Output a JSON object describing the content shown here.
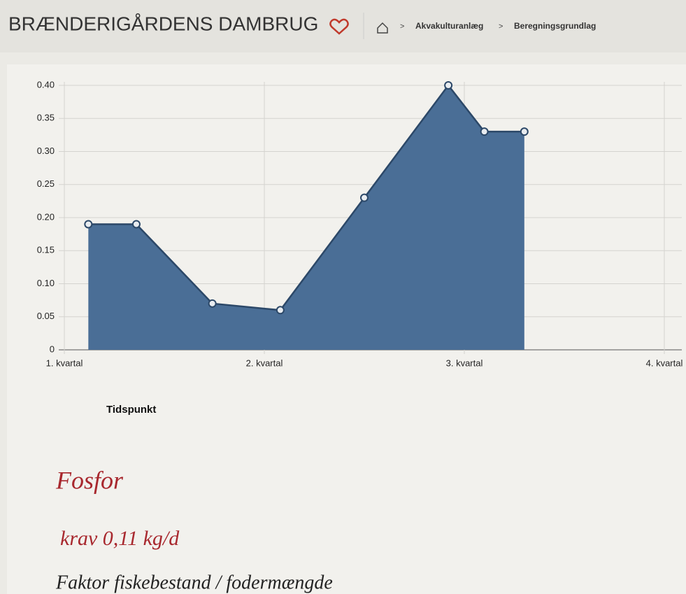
{
  "header": {
    "title": "BRÆNDERIGÅRDENS DAMBRUG",
    "breadcrumb": [
      "Akvakulturanlæg",
      "Beregningsgrundlag"
    ]
  },
  "chart_data": {
    "type": "area",
    "x_label": "Tidspunkt",
    "x": [
      0.12,
      0.36,
      0.74,
      1.08,
      1.5,
      1.92,
      2.1,
      2.3
    ],
    "values": [
      0.19,
      0.19,
      0.07,
      0.06,
      0.23,
      0.4,
      0.33,
      0.33
    ],
    "color": "#4a6e96",
    "xlim": [
      0,
      3
    ],
    "xticks": [
      {
        "value": 0,
        "label": "1. kvartal"
      },
      {
        "value": 1,
        "label": "2. kvartal"
      },
      {
        "value": 2,
        "label": "3. kvartal"
      },
      {
        "value": 3,
        "label": "4. kvartal"
      }
    ],
    "ylim": [
      0,
      0.4
    ],
    "yticks": [
      0,
      0.05,
      {
        "value": 0.1,
        "label": "0.10"
      },
      0.15,
      {
        "value": 0.2,
        "label": "0.20"
      },
      0.25,
      {
        "value": 0.3,
        "label": "0.30"
      },
      0.35,
      {
        "value": 0.4,
        "label": "0.40"
      }
    ],
    "grid": true
  },
  "notes": [
    "Fosfor",
    "krav 0,11 kg/d",
    "Faktor fiskebestand / fodermængde"
  ]
}
